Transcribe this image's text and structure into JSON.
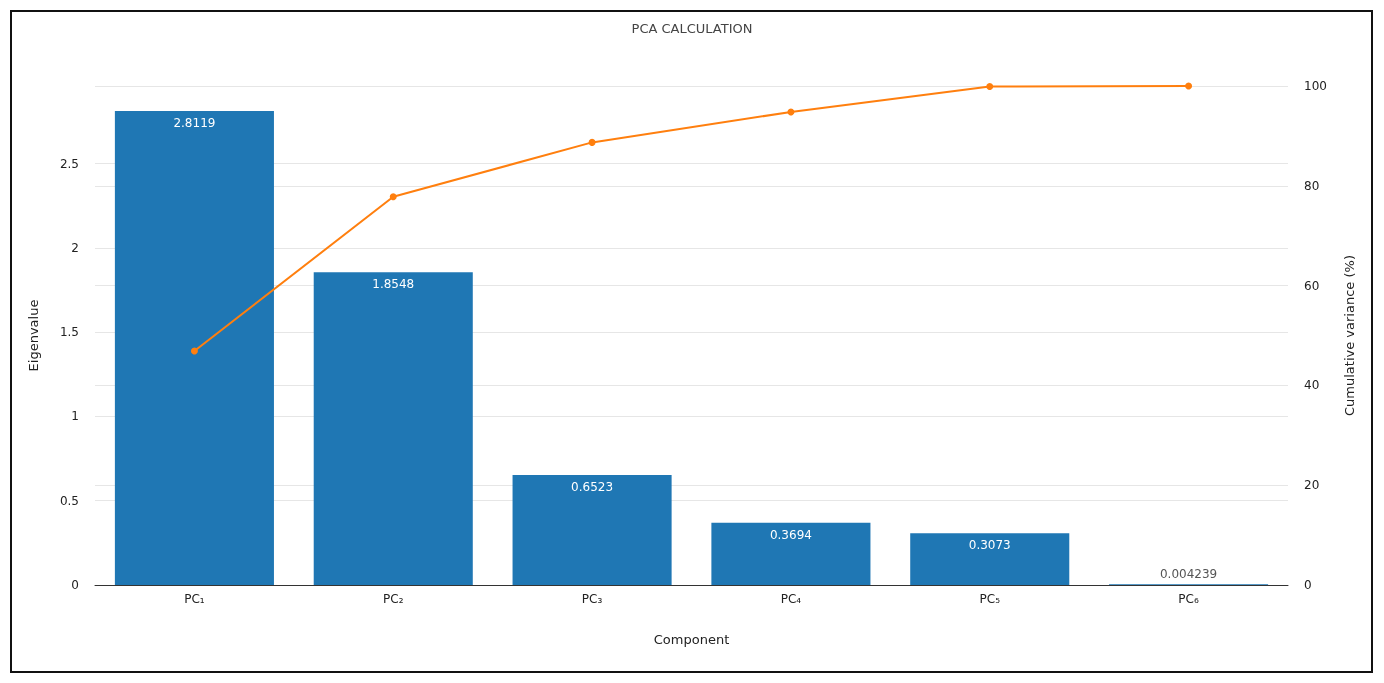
{
  "chart_data": {
    "type": "bar",
    "title": "PCA CALCULATION",
    "xlabel": "Component",
    "ylabel": "Eigenvalue",
    "y2label": "Cumulative variance (%)",
    "categories": [
      "PC₁",
      "PC₂",
      "PC₃",
      "PC₄",
      "PC₅",
      "PC₆"
    ],
    "series": [
      {
        "color": "#1f77b4",
        "values": [
          2.8119,
          1.8548,
          0.6523,
          0.3694,
          0.3073,
          0.004239
        ],
        "value_labels": [
          "2.8119",
          "1.8548",
          "0.6523",
          "0.3694",
          "0.3073",
          "0.004239"
        ]
      },
      {
        "type": "line",
        "axis": "y2",
        "color": "#ff7f0e",
        "values": [
          46.9,
          77.8,
          88.7,
          94.8,
          99.9,
          100
        ]
      }
    ],
    "marker": "circle",
    "line_style": "solid",
    "grid": true,
    "ylim": [
      0,
      2.96
    ],
    "yticks": [
      0,
      0.5,
      1,
      1.5,
      2,
      2.5
    ],
    "y2lim": [
      0,
      100
    ],
    "y2ticks": [
      0,
      20,
      40,
      60,
      80,
      100
    ]
  }
}
